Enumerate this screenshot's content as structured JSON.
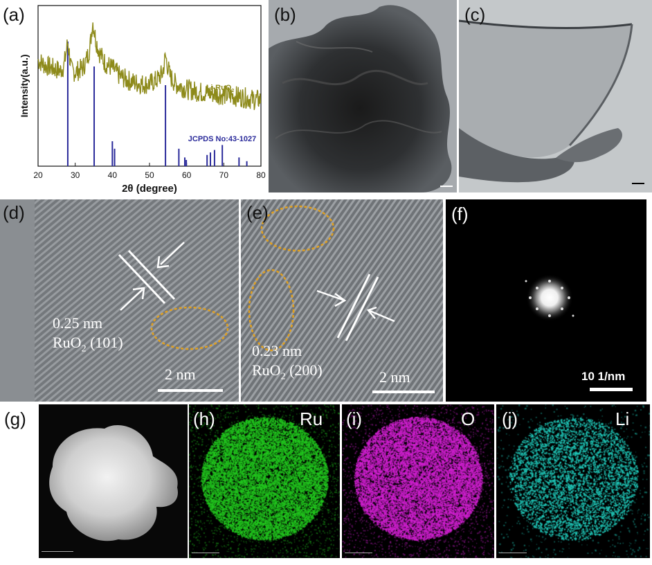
{
  "panels": {
    "a": {
      "label": "(a)"
    },
    "b": {
      "label": "(b)",
      "scale_text": ""
    },
    "c": {
      "label": "(c)"
    },
    "d": {
      "label": "(d)",
      "spacing": "0.25 nm",
      "plane_formula": "RuO",
      "plane_sub": "2",
      "plane_index": "(101)",
      "scale": "2 nm"
    },
    "e": {
      "label": "(e)",
      "spacing": "0.23 nm",
      "plane_formula": "RuO",
      "plane_sub": "2",
      "plane_index": "(200)",
      "scale": "2 nm"
    },
    "f": {
      "label": "(f)",
      "scale": "10 1/nm"
    },
    "g": {
      "label": "(g)"
    },
    "h": {
      "label": "(h)",
      "element": "Ru"
    },
    "i": {
      "label": "(i)",
      "element": "O"
    },
    "j": {
      "label": "(j)",
      "element": "Li"
    }
  },
  "colors": {
    "xrd_sample": "#8d8a1a",
    "xrd_ref": "#2a2a9a",
    "ru_map": "#22c81e",
    "o_map": "#d020d0",
    "li_map": "#20c8b8",
    "fft_ring": "#e8a020"
  },
  "chart_data": {
    "type": "line",
    "xlabel": "2θ (degree)",
    "ylabel": "Intensity(a.u.)",
    "xlim": [
      20,
      80
    ],
    "xticks": [
      20,
      30,
      40,
      50,
      60,
      70,
      80
    ],
    "grid": false,
    "series": [
      {
        "name": "Li-RuO2",
        "name_base": "Li-RuO",
        "name_sub": "2",
        "x": [
          20,
          22,
          24,
          26,
          27,
          28,
          29,
          30,
          32,
          33,
          34,
          34.7,
          35.5,
          36.5,
          38,
          40,
          42,
          44,
          46,
          48,
          50,
          52,
          53.5,
          54.3,
          55.5,
          57,
          60,
          63,
          66,
          69,
          72,
          75,
          78,
          80
        ],
        "y": [
          0.7,
          0.66,
          0.64,
          0.62,
          0.66,
          0.84,
          0.62,
          0.61,
          0.64,
          0.7,
          0.8,
          1.0,
          0.86,
          0.76,
          0.68,
          0.64,
          0.58,
          0.55,
          0.53,
          0.52,
          0.52,
          0.55,
          0.6,
          0.73,
          0.58,
          0.52,
          0.48,
          0.46,
          0.45,
          0.44,
          0.43,
          0.42,
          0.4,
          0.4
        ]
      },
      {
        "name": "JCPDS No:43-1027",
        "type": "stick",
        "x": [
          28.0,
          35.1,
          40.0,
          40.6,
          54.3,
          57.9,
          59.5,
          59.9,
          65.5,
          66.4,
          67.5,
          69.6,
          74.1,
          76.2
        ],
        "y": [
          1.0,
          0.8,
          0.2,
          0.14,
          0.65,
          0.14,
          0.07,
          0.05,
          0.09,
          0.11,
          0.13,
          0.17,
          0.07,
          0.04
        ]
      }
    ]
  }
}
